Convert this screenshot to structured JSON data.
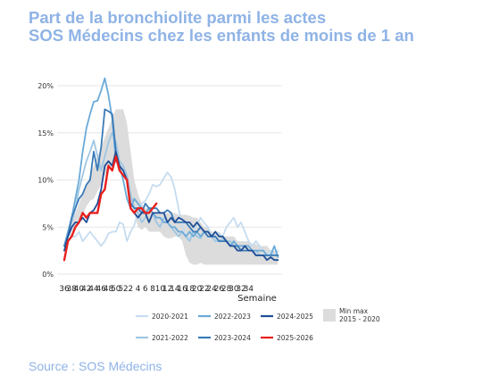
{
  "title": {
    "line1": "Part de la bronchiolite parmi les actes",
    "line2": "SOS Médecins chez les enfants de moins de 1 an"
  },
  "source": "Source : SOS Médecins",
  "chart_data": {
    "type": "line",
    "xlabel": "Semaine",
    "ylabel": "",
    "ylim": [
      0,
      20
    ],
    "y_ticks": [
      "0%",
      "5%",
      "10%",
      "15%",
      "20%"
    ],
    "x_tick_labels": [
      "36",
      "38",
      "40",
      "42",
      "44",
      "46",
      "48",
      "50",
      "52",
      "2",
      "4",
      "6",
      "8",
      "10",
      "12",
      "14",
      "16",
      "18",
      "20",
      "22",
      "24",
      "26",
      "28",
      "30",
      "32",
      "34"
    ],
    "grid": "horizontal",
    "legend_position": "bottom",
    "band": {
      "name": "Min max 2015 - 2020",
      "color": "#dcdcdc",
      "min": [
        2.7,
        3.8,
        4.5,
        5.0,
        5.8,
        6.3,
        7.2,
        7.8,
        8.0,
        8.8,
        9.5,
        10.5,
        11.0,
        11.8,
        12.0,
        11.5,
        11.0,
        10.5,
        8.0,
        6.5,
        5.0,
        4.7,
        5.0,
        4.5,
        4.5,
        4.5,
        4.5,
        4.0,
        3.8,
        3.8,
        4.0,
        4.0,
        3.5,
        2.0,
        1.2,
        1.0,
        1.0,
        1.2,
        1.0,
        1.0,
        1.0,
        1.0,
        1.0,
        1.0,
        1.0,
        1.0,
        1.0,
        1.0,
        1.0,
        1.0,
        1.0,
        1.0,
        1.0,
        1.0,
        1.0,
        1.0,
        1.0,
        1.0,
        1.0
      ],
      "max": [
        3.3,
        4.5,
        5.5,
        6.5,
        7.5,
        8.5,
        9.5,
        10.5,
        11.5,
        12.5,
        13.5,
        14.5,
        15.5,
        16.5,
        17.5,
        17.5,
        17.5,
        16.0,
        13.0,
        10.0,
        8.5,
        7.5,
        7.0,
        7.0,
        6.5,
        6.5,
        6.5,
        6.5,
        6.5,
        6.5,
        6.5,
        6.3,
        6.3,
        6.3,
        6.2,
        6.0,
        6.0,
        5.5,
        5.0,
        5.0,
        4.5,
        4.5,
        4.5,
        4.0,
        4.0,
        4.0,
        4.0,
        3.5,
        3.5,
        3.5,
        3.5,
        3.2,
        3.2,
        3.0,
        3.0,
        3.0,
        2.5,
        2.5,
        2.5
      ]
    },
    "series": [
      {
        "name": "2020-2021",
        "color": "#c5dcf0",
        "width": 1.8,
        "values": [
          3.0,
          4.5,
          4.0,
          4.0,
          4.5,
          3.5,
          4.0,
          4.5,
          4.0,
          3.5,
          3.0,
          3.5,
          4.3,
          4.5,
          4.5,
          5.5,
          5.3,
          3.5,
          4.5,
          5.2,
          6.5,
          7.5,
          7.8,
          8.5,
          9.5,
          9.3,
          9.5,
          10.2,
          10.8,
          10.3,
          9.0,
          7.0,
          5.2,
          4.0,
          3.8,
          4.5,
          5.2,
          6.0,
          5.4,
          5.0,
          4.0,
          4.5,
          4.3,
          4.0,
          5.0,
          5.5,
          6.0,
          5.0,
          5.5,
          4.5,
          3.5,
          3.0,
          3.5,
          3.0,
          2.5,
          2.0,
          2.5,
          2.0,
          2.5
        ]
      },
      {
        "name": "2021-2022",
        "color": "#9ec6e3",
        "width": 1.8,
        "values": [
          3.0,
          4.5,
          5.5,
          7.0,
          9.0,
          10.5,
          12.0,
          13.0,
          14.2,
          12.5,
          11.0,
          12.5,
          14.0,
          15.0,
          14.0,
          12.0,
          11.5,
          10.5,
          8.5,
          7.0,
          6.5,
          5.5,
          6.0,
          7.0,
          6.5,
          5.5,
          5.0,
          6.0,
          5.5,
          5.0,
          4.5,
          4.0,
          4.5,
          4.0,
          3.5,
          4.5,
          4.0,
          3.8,
          4.5,
          4.0,
          4.0,
          3.5,
          3.5,
          3.8,
          3.5,
          3.5,
          3.0,
          3.0,
          3.0,
          3.0,
          2.5,
          2.5,
          2.5,
          2.0,
          2.0,
          2.0,
          2.0,
          2.0,
          2.0
        ]
      },
      {
        "name": "2022-2023",
        "color": "#6aaad8",
        "width": 1.8,
        "values": [
          3.0,
          4.5,
          6.0,
          8.0,
          10.0,
          13.0,
          15.5,
          17.0,
          18.3,
          18.4,
          19.5,
          20.8,
          19.0,
          16.5,
          12.0,
          11.5,
          10.0,
          8.0,
          7.0,
          8.0,
          7.5,
          7.0,
          6.5,
          7.0,
          6.5,
          6.0,
          6.0,
          5.5,
          5.5,
          5.0,
          5.0,
          4.5,
          4.5,
          4.0,
          4.5,
          4.0,
          4.5,
          4.0,
          4.5,
          4.5,
          4.0,
          4.0,
          3.5,
          3.5,
          3.5,
          3.0,
          3.5,
          3.0,
          3.0,
          3.0,
          3.0,
          2.5,
          2.5,
          2.5,
          2.5,
          2.0,
          2.0,
          3.0,
          1.8
        ]
      },
      {
        "name": "2023-2024",
        "color": "#3a7bb8",
        "width": 1.8,
        "values": [
          3.0,
          4.0,
          6.0,
          7.0,
          8.0,
          8.5,
          9.5,
          10.0,
          13.0,
          11.0,
          13.5,
          17.5,
          17.3,
          17.0,
          13.0,
          11.0,
          10.5,
          10.0,
          7.5,
          7.0,
          7.0,
          6.5,
          7.5,
          7.0,
          7.0,
          7.0,
          6.5,
          6.5,
          6.8,
          6.5,
          5.5,
          5.5,
          5.5,
          5.5,
          5.0,
          4.5,
          4.5,
          5.0,
          4.5,
          4.0,
          4.0,
          4.0,
          3.5,
          3.5,
          3.5,
          3.0,
          3.0,
          3.0,
          2.5,
          2.5,
          2.5,
          2.5,
          2.0,
          2.0,
          2.0,
          2.0,
          2.0,
          2.0,
          2.0
        ]
      },
      {
        "name": "2024-2025",
        "color": "#1f4e96",
        "width": 1.8,
        "values": [
          2.5,
          4.0,
          5.0,
          5.5,
          5.5,
          6.0,
          5.5,
          6.5,
          6.8,
          7.5,
          9.0,
          11.5,
          12.0,
          11.5,
          13.0,
          11.5,
          11.0,
          10.0,
          7.0,
          6.5,
          6.0,
          6.5,
          6.5,
          5.5,
          6.5,
          6.5,
          6.5,
          6.5,
          5.5,
          6.0,
          5.5,
          6.0,
          5.8,
          5.5,
          5.5,
          5.0,
          5.5,
          5.0,
          4.5,
          4.5,
          4.0,
          4.5,
          4.0,
          4.0,
          3.5,
          3.0,
          3.0,
          2.5,
          2.5,
          3.0,
          2.5,
          2.5,
          2.0,
          2.0,
          2.0,
          1.5,
          1.8,
          1.5,
          1.5
        ]
      },
      {
        "name": "2025-2026",
        "color": "#e8201c",
        "width": 2.4,
        "values": [
          1.5,
          3.5,
          4.0,
          5.0,
          5.5,
          6.5,
          6.0,
          6.5,
          6.5,
          6.5,
          8.5,
          9.0,
          11.5,
          11.0,
          12.5,
          11.0,
          10.5,
          10.0,
          7.0,
          6.5,
          7.0,
          7.0,
          6.5,
          6.5,
          7.0,
          7.5
        ]
      }
    ]
  }
}
